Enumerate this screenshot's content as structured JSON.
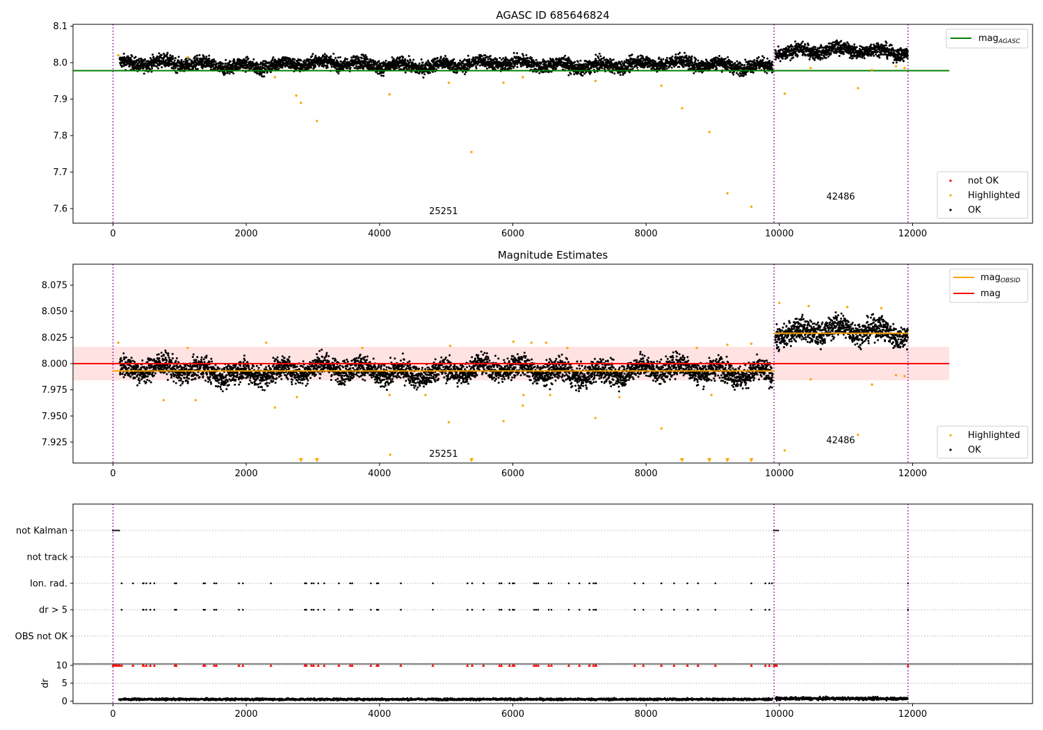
{
  "chart_data": [
    {
      "panel": "agasc",
      "type": "scatter",
      "title": "AGASC ID 685646824",
      "xlim": [
        -600,
        13800
      ],
      "ylim": [
        7.56,
        8.105
      ],
      "xticks": [
        0,
        2000,
        4000,
        6000,
        8000,
        10000,
        12000
      ],
      "yticks": [
        7.6,
        7.7,
        7.8,
        7.9,
        8.0,
        8.1
      ],
      "ytick_labels": [
        "7.6",
        "7.7",
        "7.8",
        "7.9",
        "8.0",
        "8.1"
      ],
      "obsid_boundaries": [
        0,
        9920,
        11930
      ],
      "obsid_labels": [
        {
          "text": "25251",
          "x": 4960,
          "y": 7.585
        },
        {
          "text": "42486",
          "x": 10920,
          "y": 7.625
        }
      ],
      "hlines": [
        {
          "name": "mag_AGASC",
          "y": 7.978,
          "xmin": -600,
          "xmax": 12550,
          "color": "#008000"
        }
      ],
      "ok_segments": [
        {
          "x0": 100,
          "x1": 9900,
          "mean": 7.995,
          "spread": 0.02
        },
        {
          "x0": 9940,
          "x1": 11930,
          "mean": 8.03,
          "spread": 0.02
        }
      ],
      "highlighted_points": [
        [
          80,
          8.02
        ],
        [
          1120,
          8.015
        ],
        [
          2430,
          7.96
        ],
        [
          2750,
          7.91
        ],
        [
          2820,
          7.89
        ],
        [
          3060,
          7.84
        ],
        [
          4150,
          7.913
        ],
        [
          5040,
          7.945
        ],
        [
          5380,
          7.755
        ],
        [
          5860,
          7.945
        ],
        [
          6150,
          7.96
        ],
        [
          7240,
          7.95
        ],
        [
          8230,
          7.937
        ],
        [
          8540,
          7.875
        ],
        [
          8950,
          7.81
        ],
        [
          9220,
          7.642
        ],
        [
          9580,
          7.605
        ],
        [
          10080,
          7.915
        ],
        [
          10470,
          7.985
        ],
        [
          11180,
          7.93
        ],
        [
          11390,
          7.98
        ],
        [
          11750,
          7.99
        ],
        [
          11880,
          7.985
        ]
      ],
      "legend": {
        "lines": [
          {
            "label": "mag",
            "sub": "AGASC",
            "color": "#008000"
          }
        ],
        "markers": [
          {
            "label": "not OK",
            "color": "#ff0000"
          },
          {
            "label": "Highlighted",
            "color": "#ffa500"
          },
          {
            "label": "OK",
            "color": "#000000"
          }
        ]
      }
    },
    {
      "panel": "estimates",
      "type": "scatter",
      "title": "Magnitude Estimates",
      "xlim": [
        -600,
        13800
      ],
      "ylim": [
        7.905,
        8.095
      ],
      "xticks": [
        0,
        2000,
        4000,
        6000,
        8000,
        10000,
        12000
      ],
      "yticks": [
        7.925,
        7.95,
        7.975,
        8.0,
        8.025,
        8.05,
        8.075
      ],
      "ytick_labels": [
        "7.925",
        "7.950",
        "7.975",
        "8.000",
        "8.025",
        "8.050",
        "8.075"
      ],
      "obsid_boundaries": [
        0,
        9920,
        11930
      ],
      "obsid_labels": [
        {
          "text": "25251",
          "x": 4960,
          "y": 7.911
        },
        {
          "text": "42486",
          "x": 10920,
          "y": 7.924
        }
      ],
      "band": {
        "x0": -600,
        "x1": 12550,
        "y0": 7.984,
        "y1": 8.016,
        "color": "#ff0000",
        "opacity": 0.11
      },
      "hlines": [
        {
          "name": "mag",
          "y": 8.0,
          "xmin": -600,
          "xmax": 12550,
          "color": "#ff0000"
        },
        {
          "name": "mag_OBSID_1",
          "y": 7.993,
          "xmin": 0,
          "xmax": 9920,
          "color": "#ffa500"
        },
        {
          "name": "mag_OBSID_2",
          "y": 8.029,
          "xmin": 9920,
          "xmax": 11930,
          "color": "#ffa500"
        }
      ],
      "ok_segments": [
        {
          "x0": 100,
          "x1": 9900,
          "mean": 7.993,
          "spread": 0.012
        },
        {
          "x0": 9940,
          "x1": 11930,
          "mean": 8.03,
          "spread": 0.012
        }
      ],
      "highlighted_points": [
        [
          80,
          8.02
        ],
        [
          760,
          7.965
        ],
        [
          1120,
          8.015
        ],
        [
          1240,
          7.965
        ],
        [
          2300,
          8.02
        ],
        [
          2430,
          7.958
        ],
        [
          2760,
          7.968
        ],
        [
          3740,
          8.015
        ],
        [
          4150,
          7.97
        ],
        [
          4160,
          7.913
        ],
        [
          4690,
          7.97
        ],
        [
          5040,
          7.944
        ],
        [
          5060,
          8.017
        ],
        [
          5860,
          7.945
        ],
        [
          6010,
          8.021
        ],
        [
          6150,
          7.96
        ],
        [
          6160,
          7.97
        ],
        [
          6280,
          8.02
        ],
        [
          6500,
          8.02
        ],
        [
          6560,
          7.97
        ],
        [
          6820,
          8.015
        ],
        [
          7240,
          7.948
        ],
        [
          7600,
          7.968
        ],
        [
          8230,
          7.938
        ],
        [
          8760,
          8.015
        ],
        [
          8980,
          7.97
        ],
        [
          9220,
          8.018
        ],
        [
          9580,
          8.019
        ],
        [
          10000,
          8.058
        ],
        [
          10080,
          7.917
        ],
        [
          10440,
          8.055
        ],
        [
          10470,
          7.985
        ],
        [
          11020,
          8.054
        ],
        [
          11180,
          7.932
        ],
        [
          11390,
          7.98
        ],
        [
          11530,
          8.053
        ],
        [
          11750,
          7.989
        ],
        [
          11880,
          7.988
        ]
      ],
      "lower_limit_markers": [
        2820,
        3060,
        5380,
        8540,
        8950,
        9220,
        9580
      ],
      "legend_top": {
        "lines": [
          {
            "label": "mag",
            "sub": "OBSID",
            "color": "#ffa500"
          },
          {
            "label": "mag",
            "sub": "",
            "color": "#ff0000"
          }
        ]
      },
      "legend_bottom": {
        "markers": [
          {
            "label": "Highlighted",
            "color": "#ffa500"
          },
          {
            "label": "OK",
            "color": "#000000"
          }
        ]
      }
    },
    {
      "panel": "flags",
      "type": "scatter",
      "xlim": [
        -600,
        13800
      ],
      "obsid_boundaries": [
        0,
        9920,
        11930
      ],
      "categories": [
        "not Kalman",
        "not track",
        "Ion. rad.",
        "dr > 5",
        "OBS not OK"
      ],
      "flag_points": {
        "not Kalman": [
          0,
          30,
          60,
          90,
          9920,
          9950,
          9980
        ],
        "not track": [],
        "Ion. rad.": [
          130,
          300,
          450,
          460,
          500,
          560,
          620,
          930,
          950,
          1360,
          1380,
          1520,
          1550,
          1890,
          1950,
          2370,
          2880,
          2900,
          2980,
          3010,
          3080,
          3170,
          3390,
          3560,
          3590,
          3870,
          3960,
          3980,
          4320,
          4800,
          5320,
          5390,
          5560,
          5800,
          5830,
          5950,
          6000,
          6020,
          6320,
          6350,
          6380,
          6540,
          6580,
          6840,
          7000,
          7150,
          7210,
          7240,
          7250,
          7830,
          7960,
          8230,
          8420,
          8620,
          8780,
          9040,
          9580,
          9790,
          9850,
          9890,
          11930
        ],
        "dr > 5": [
          130,
          450,
          460,
          500,
          560,
          620,
          930,
          950,
          1360,
          1380,
          1520,
          1550,
          1890,
          1950,
          2880,
          2900,
          2980,
          3010,
          3080,
          3170,
          3390,
          3560,
          3590,
          3870,
          3960,
          3980,
          4320,
          4800,
          5320,
          5390,
          5560,
          5800,
          5830,
          5950,
          6000,
          6020,
          6320,
          6350,
          6380,
          6540,
          6580,
          6840,
          7000,
          7150,
          7210,
          7240,
          7250,
          7830,
          7960,
          8230,
          8420,
          8620,
          8780,
          9040,
          9580,
          9790,
          9850,
          11930
        ],
        "OBS not OK": []
      }
    },
    {
      "panel": "dr",
      "type": "scatter",
      "xlim": [
        -600,
        13800
      ],
      "ylim": [
        -0.7,
        10.4
      ],
      "yticks": [
        0,
        5,
        10
      ],
      "ytick_labels": [
        "0",
        "5",
        "10"
      ],
      "xticks": [
        0,
        2000,
        4000,
        6000,
        8000,
        10000,
        12000
      ],
      "ylabel": "dr",
      "obsid_boundaries": [
        0,
        9920,
        11930
      ],
      "dr_segments": [
        {
          "x0": 90,
          "x1": 9900,
          "mean": 0.5,
          "spread": 0.3
        },
        {
          "x0": 9940,
          "x1": 11930,
          "mean": 0.7,
          "spread": 0.4
        }
      ],
      "clipped_points": [
        0,
        20,
        40,
        60,
        80,
        100,
        130,
        300,
        450,
        460,
        500,
        560,
        620,
        930,
        950,
        1360,
        1380,
        1520,
        1550,
        1890,
        1950,
        2370,
        2880,
        2900,
        2980,
        3010,
        3080,
        3170,
        3390,
        3560,
        3590,
        3870,
        3960,
        3980,
        4320,
        4800,
        5320,
        5390,
        5560,
        5800,
        5830,
        5950,
        6000,
        6020,
        6320,
        6350,
        6380,
        6540,
        6580,
        6840,
        7000,
        7150,
        7210,
        7240,
        7250,
        7830,
        7960,
        8230,
        8420,
        8620,
        8780,
        9040,
        9580,
        9790,
        9850,
        9920,
        9940,
        9960,
        11930
      ]
    }
  ]
}
